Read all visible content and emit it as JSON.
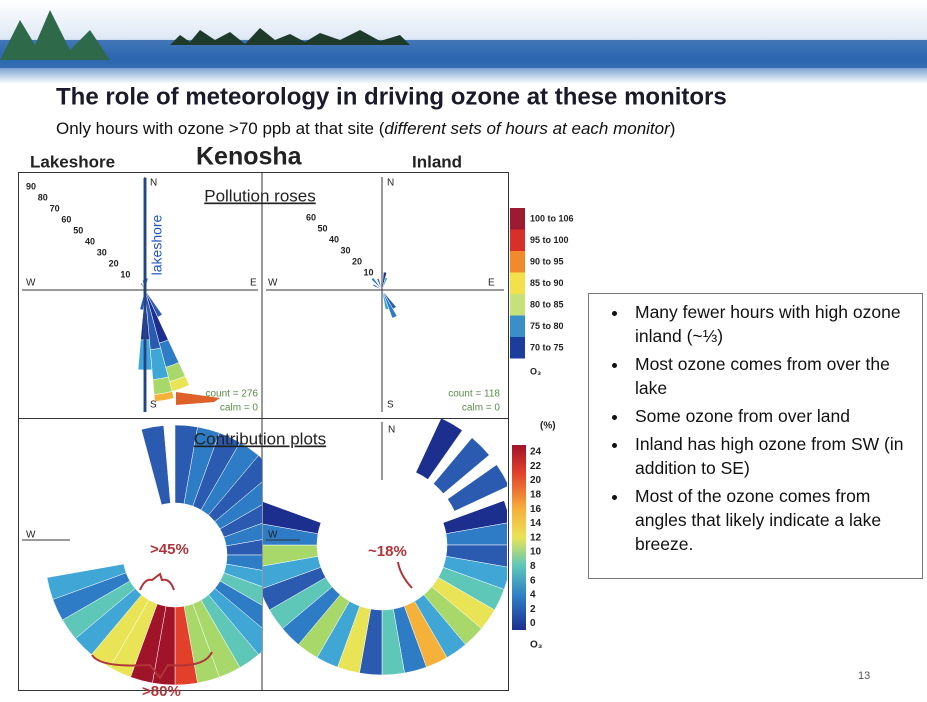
{
  "header": {
    "title": "The role of meteorology in driving ozone at these monitors",
    "subtitle": [
      "Only hours with ozone >70 ppb at that site (",
      "different sets of hours at each monitor",
      ")"
    ]
  },
  "site_labels": {
    "left": "Lakeshore",
    "center": "Kenosha",
    "right": "Inland"
  },
  "pollution_roses": {
    "title": "Pollution roses",
    "left": {
      "radial_labels": [
        "90",
        "80",
        "70",
        "60",
        "50",
        "40",
        "30",
        "20",
        "10"
      ],
      "directions": [
        "N",
        "W",
        "E",
        "S"
      ],
      "shore_label": "lakeshore",
      "count": "count = 276",
      "calm": "calm = 0"
    },
    "right": {
      "radial_labels": [
        "60",
        "50",
        "40",
        "30",
        "20",
        "10"
      ],
      "directions": [
        "N",
        "W",
        "E",
        "S"
      ],
      "count": "count = 118",
      "calm": "calm = 0"
    }
  },
  "legend": {
    "items": [
      "100 to 106",
      "95 to 100",
      "90 to 95",
      "85 to 90",
      "80 to 85",
      "75 to 80",
      "70 to 75"
    ],
    "unit": "O₃"
  },
  "contribution_plots": {
    "title": "Contribution plots",
    "left": {
      "directions": [
        "W"
      ]
    },
    "right": {
      "directions": [
        "N",
        "W"
      ]
    },
    "annotations": [
      ">45%",
      "~18%",
      ">80%"
    ]
  },
  "colorbar": {
    "unit_top": "(%)",
    "labels": [
      "24",
      "22",
      "20",
      "18",
      "16",
      "14",
      "12",
      "10",
      "8",
      "6",
      "4",
      "2",
      "0"
    ],
    "unit": "O₃"
  },
  "bullets": [
    "Many fewer hours with high ozone inland (~⅓)",
    "Most ozone comes from over the lake",
    "Some ozone from over land",
    "Inland has high ozone from SW (in addition to SE)",
    "Most of the ozone comes from angles that likely indicate a lake breeze."
  ],
  "page_number": "13"
}
